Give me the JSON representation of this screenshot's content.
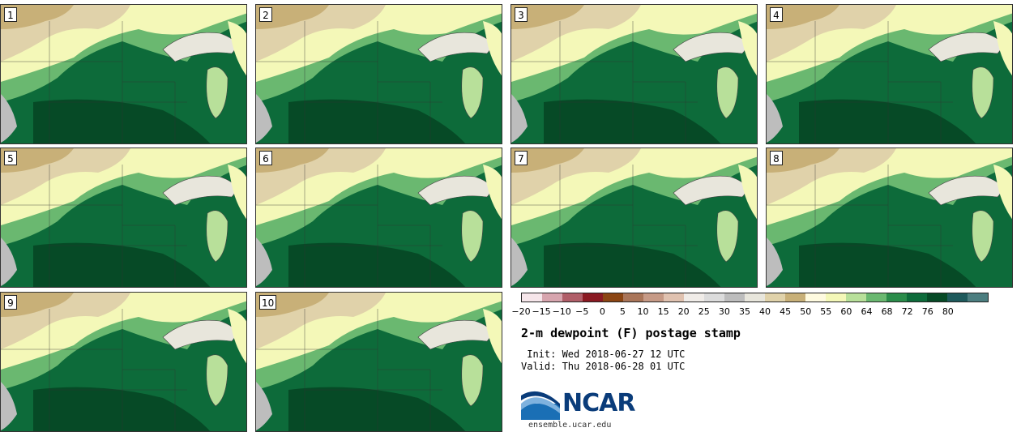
{
  "panels": [
    {
      "label": "1"
    },
    {
      "label": "2"
    },
    {
      "label": "3"
    },
    {
      "label": "4"
    },
    {
      "label": "5"
    },
    {
      "label": "6"
    },
    {
      "label": "7"
    },
    {
      "label": "8"
    },
    {
      "label": "9"
    },
    {
      "label": "10"
    }
  ],
  "colorbar": {
    "colors": [
      "#f6e6ea",
      "#d7a5ae",
      "#b05e68",
      "#8a1a22",
      "#8b4513",
      "#a97559",
      "#c69a86",
      "#e0c2b0",
      "#f0ece8",
      "#dcdcdc",
      "#bdbdbd",
      "#e8e6dc",
      "#e0d2aa",
      "#c8b078",
      "#fffbe0",
      "#f4f8b8",
      "#b8e09a",
      "#6ab870",
      "#2a8c4a",
      "#0d6b3a",
      "#064a26",
      "#1e5a5c",
      "#4c7e80"
    ],
    "ticks": [
      "-20",
      "-15",
      "-10",
      "-5",
      "0",
      "5",
      "10",
      "15",
      "20",
      "25",
      "30",
      "35",
      "40",
      "45",
      "50",
      "55",
      "60",
      "64",
      "68",
      "72",
      "76",
      "80"
    ]
  },
  "title": "2-m dewpoint (F) postage stamp",
  "init": " Init: Wed 2018-06-27 12 UTC",
  "valid": "Valid: Thu 2018-06-28 01 UTC",
  "logo": {
    "name": "NCAR",
    "site": "ensemble.ucar.edu"
  }
}
